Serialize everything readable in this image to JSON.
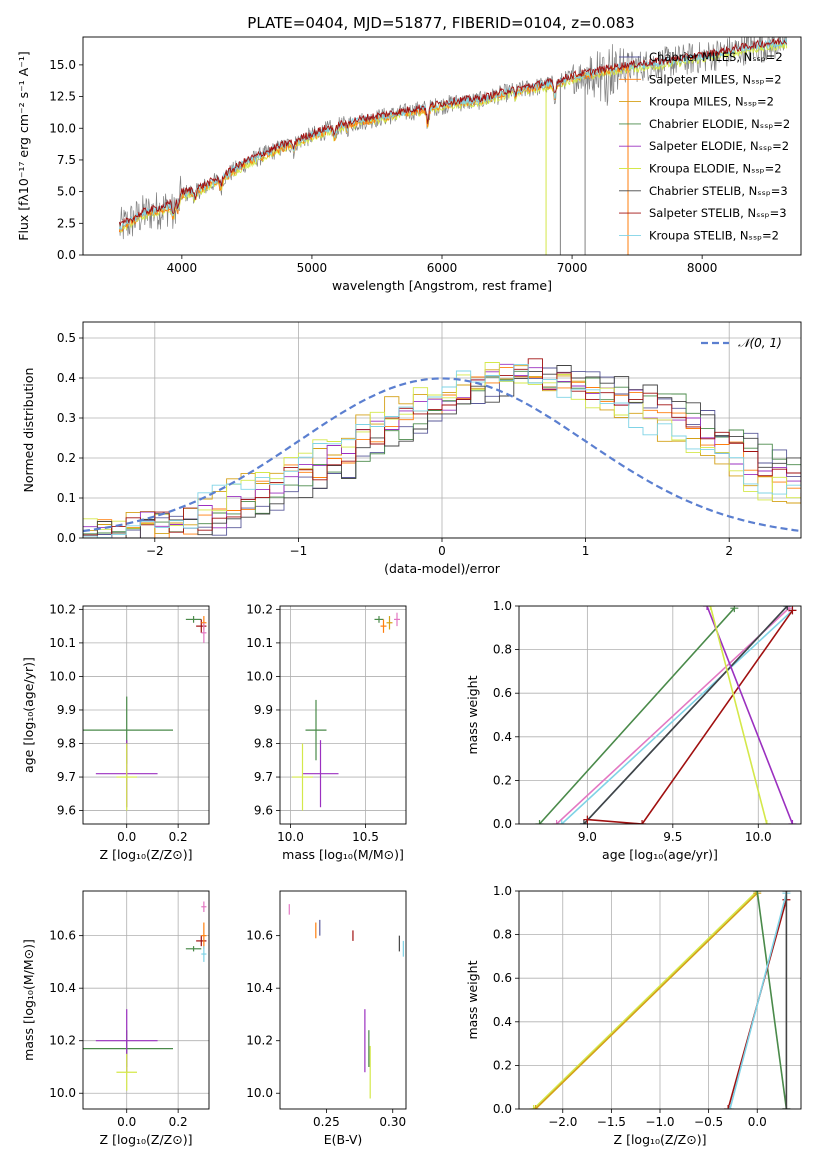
{
  "figure_title": "PLATE=0404, MJD=51877, FIBERID=0104, z=0.083",
  "colors": {
    "chabrier_miles": "#5a5a9a",
    "salpeter_miles": "#ff7f0e",
    "kroupa_miles": "#d4a017",
    "chabrier_elodie": "#4a8a4a",
    "salpeter_elodie": "#9b30c0",
    "kroupa_elodie": "#d4e84a",
    "chabrier_stelib": "#444444",
    "salpeter_stelib": "#a01010",
    "kroupa_stelib": "#7fd3e6",
    "data": "#808080",
    "normal": "#5b7fd0",
    "pink": "#e377c2",
    "blue": "#1f77b4"
  },
  "chart_data": [
    {
      "id": "spectrum",
      "type": "line",
      "title": "PLATE=0404, MJD=51877, FIBERID=0104, z=0.083",
      "xlabel": "wavelength [Angstrom, rest frame]",
      "ylabel": "Flux [fλ10⁻¹⁷ erg cm⁻² s⁻¹ A⁻¹]",
      "xlim": [
        3240,
        8760
      ],
      "ylim": [
        0,
        17.2
      ],
      "xticks": [
        4000,
        5000,
        6000,
        7000,
        8000
      ],
      "yticks": [
        0.0,
        2.5,
        5.0,
        7.5,
        10.0,
        12.5,
        15.0
      ],
      "grid": false,
      "legend_position": "right",
      "legend": [
        {
          "label": "Chabrier MILES, Nₛₛₚ=2",
          "color_key": "chabrier_miles"
        },
        {
          "label": "Salpeter MILES, Nₛₛₚ=2",
          "color_key": "salpeter_miles"
        },
        {
          "label": "Kroupa MILES, Nₛₛₚ=2",
          "color_key": "kroupa_miles"
        },
        {
          "label": "Chabrier ELODIE, Nₛₛₚ=2",
          "color_key": "chabrier_elodie"
        },
        {
          "label": "Salpeter ELODIE, Nₛₛₚ=2",
          "color_key": "salpeter_elodie"
        },
        {
          "label": "Kroupa ELODIE, Nₛₛₚ=2",
          "color_key": "kroupa_elodie"
        },
        {
          "label": "Chabrier STELIB, Nₛₛₚ=3",
          "color_key": "chabrier_stelib"
        },
        {
          "label": "Salpeter STELIB, Nₛₛₚ=3",
          "color_key": "salpeter_stelib"
        },
        {
          "label": "Kroupa STELIB, Nₛₛₚ=2",
          "color_key": "kroupa_stelib"
        }
      ],
      "continuum": {
        "x": [
          3500,
          3700,
          3900,
          4000,
          4100,
          4300,
          4500,
          4700,
          4900,
          5100,
          5300,
          5500,
          5700,
          5900,
          6100,
          6300,
          6500,
          6700,
          6800,
          6900,
          7000,
          7100,
          7200,
          7300,
          7400,
          7600,
          7800,
          8000,
          8200,
          8400,
          8700
        ],
        "y": [
          2.0,
          3.2,
          3.8,
          4.8,
          5.0,
          6.0,
          7.3,
          8.2,
          9.0,
          9.8,
          10.4,
          10.8,
          11.2,
          11.6,
          12.0,
          12.2,
          12.8,
          13.2,
          13.4,
          13.6,
          14.0,
          14.2,
          14.4,
          14.6,
          14.8,
          15.0,
          15.3,
          15.6,
          16.0,
          16.4,
          16.8
        ]
      }
    },
    {
      "id": "residuals",
      "type": "line",
      "xlabel": "(data-model)/error",
      "ylabel": "Normed distribution",
      "xlim": [
        -2.5,
        2.5
      ],
      "ylim": [
        0,
        0.54
      ],
      "xticks": [
        -2,
        -1,
        0,
        1,
        2
      ],
      "xtick_labels": [
        "−2",
        "−1",
        "0",
        "1",
        "2"
      ],
      "yticks": [
        0.0,
        0.1,
        0.2,
        0.3,
        0.4,
        0.5
      ],
      "grid": true,
      "legend_position": "top-right",
      "legend": [
        {
          "label": "𝒩(0, 1)",
          "color_key": "normal",
          "style": "dashed"
        }
      ],
      "bin_width": 0.1,
      "bin_start": -2.5,
      "base_histogram": [
        0.02,
        0.02,
        0.02,
        0.03,
        0.03,
        0.03,
        0.04,
        0.04,
        0.05,
        0.06,
        0.08,
        0.1,
        0.12,
        0.13,
        0.15,
        0.16,
        0.18,
        0.2,
        0.22,
        0.24,
        0.26,
        0.28,
        0.3,
        0.32,
        0.34,
        0.35,
        0.37,
        0.38,
        0.39,
        0.4,
        0.41,
        0.42,
        0.4,
        0.39,
        0.38,
        0.38,
        0.37,
        0.36,
        0.35,
        0.33,
        0.31,
        0.29,
        0.27,
        0.25,
        0.23,
        0.21,
        0.19,
        0.17,
        0.15,
        0.13,
        0.12,
        0.1,
        0.09,
        0.08,
        0.07,
        0.06,
        0.05,
        0.05,
        0.04,
        0.04
      ]
    },
    {
      "id": "age_vs_z",
      "type": "scatter",
      "xlabel": "Z [log₁₀(Z/Z⊙)]",
      "ylabel": "age  [log₁₀(age/yr)]",
      "xlim": [
        -0.17,
        0.32
      ],
      "ylim": [
        9.56,
        10.21
      ],
      "xticks": [
        0.0,
        0.2
      ],
      "xtick_labels": [
        "0.0",
        "0.2"
      ],
      "yticks": [
        9.6,
        9.7,
        9.8,
        9.9,
        10.0,
        10.1,
        10.2
      ],
      "grid": true,
      "points": [
        {
          "x": 0.0,
          "y": 9.84,
          "xerr": 0.18,
          "yerr": 0.1,
          "color_key": "chabrier_elodie"
        },
        {
          "x": 0.0,
          "y": 9.71,
          "xerr": 0.12,
          "yerr": 0.1,
          "color_key": "salpeter_elodie"
        },
        {
          "x": 0.0,
          "y": 9.7,
          "xerr": 0.04,
          "yerr": 0.1,
          "color_key": "kroupa_elodie"
        },
        {
          "x": 0.26,
          "y": 10.17,
          "xerr": 0.03,
          "yerr": 0.01,
          "color_key": "chabrier_elodie"
        },
        {
          "x": 0.29,
          "y": 10.15,
          "xerr": 0.02,
          "yerr": 0.02,
          "color_key": "salpeter_stelib"
        },
        {
          "x": 0.3,
          "y": 10.16,
          "xerr": 0.01,
          "yerr": 0.02,
          "color_key": "salpeter_miles"
        },
        {
          "x": 0.3,
          "y": 10.13,
          "xerr": 0.01,
          "yerr": 0.03,
          "color_key": "pink"
        }
      ]
    },
    {
      "id": "age_vs_mass",
      "type": "scatter",
      "xlabel": "mass [log₁₀(M/M⊙)]",
      "xlim": [
        9.93,
        10.77
      ],
      "ylim": [
        9.56,
        10.21
      ],
      "xticks": [
        10.0,
        10.5
      ],
      "xtick_labels": [
        "10.0",
        "10.5"
      ],
      "yticks": [
        9.6,
        9.7,
        9.8,
        9.9,
        10.0,
        10.1,
        10.2
      ],
      "grid": true,
      "points": [
        {
          "x": 10.17,
          "y": 9.84,
          "xerr": 0.07,
          "yerr": 0.09,
          "color_key": "chabrier_elodie"
        },
        {
          "x": 10.2,
          "y": 9.71,
          "xerr": 0.12,
          "yerr": 0.1,
          "color_key": "salpeter_elodie"
        },
        {
          "x": 10.08,
          "y": 9.7,
          "xerr": 0.07,
          "yerr": 0.1,
          "color_key": "kroupa_elodie"
        },
        {
          "x": 10.59,
          "y": 10.17,
          "xerr": 0.03,
          "yerr": 0.01,
          "color_key": "chabrier_elodie"
        },
        {
          "x": 10.62,
          "y": 10.15,
          "xerr": 0.02,
          "yerr": 0.02,
          "color_key": "salpeter_miles"
        },
        {
          "x": 10.66,
          "y": 10.16,
          "xerr": 0.02,
          "yerr": 0.02,
          "color_key": "kroupa_miles"
        },
        {
          "x": 10.71,
          "y": 10.17,
          "xerr": 0.02,
          "yerr": 0.02,
          "color_key": "pink"
        }
      ]
    },
    {
      "id": "weight_vs_age",
      "type": "line",
      "xlabel": "age  [log₁₀(age/yr)]",
      "ylabel": "mass weight",
      "xlim": [
        8.6,
        10.25
      ],
      "ylim": [
        0,
        1
      ],
      "xticks": [
        9.0,
        9.5,
        10.0
      ],
      "xtick_labels": [
        "9.0",
        "9.5",
        "10.0"
      ],
      "yticks": [
        0.0,
        0.2,
        0.4,
        0.6,
        0.8,
        1.0
      ],
      "grid": true,
      "series": [
        {
          "color_key": "chabrier_elodie",
          "x": [
            8.72,
            9.86
          ],
          "y": [
            0.0,
            0.99
          ]
        },
        {
          "color_key": "pink",
          "x": [
            8.82,
            10.18
          ],
          "y": [
            0.0,
            0.99
          ]
        },
        {
          "color_key": "kroupa_stelib",
          "x": [
            8.85,
            10.2
          ],
          "y": [
            0.0,
            0.98
          ]
        },
        {
          "color_key": "blue",
          "x": [
            8.98,
            10.17
          ],
          "y": [
            0.0,
            1.0
          ]
        },
        {
          "color_key": "chabrier_stelib",
          "x": [
            8.98,
            10.17
          ],
          "y": [
            0.0,
            1.0
          ]
        },
        {
          "color_key": "salpeter_stelib",
          "x": [
            9.0,
            9.32,
            10.2
          ],
          "y": [
            0.02,
            0.0,
            0.98
          ]
        },
        {
          "color_key": "salpeter_elodie",
          "x": [
            9.7,
            10.2
          ],
          "y": [
            1.0,
            0.0
          ]
        },
        {
          "color_key": "kroupa_elodie",
          "x": [
            9.72,
            10.05
          ],
          "y": [
            1.0,
            0.0
          ]
        }
      ]
    },
    {
      "id": "mass_vs_z",
      "type": "scatter",
      "xlabel": "Z [log₁₀(Z/Z⊙)]",
      "ylabel": "mass [log₁₀(M/M⊙)]",
      "xlim": [
        -0.17,
        0.32
      ],
      "ylim": [
        9.94,
        10.77
      ],
      "xticks": [
        0.0,
        0.2
      ],
      "xtick_labels": [
        "0.0",
        "0.2"
      ],
      "yticks": [
        10.0,
        10.2,
        10.4,
        10.6
      ],
      "ytick_labels": [
        "10.0",
        "10.2",
        "10.4",
        "10.6"
      ],
      "grid": true,
      "points": [
        {
          "x": 0.0,
          "y": 10.17,
          "xerr": 0.18,
          "yerr": 0.07,
          "color_key": "chabrier_elodie"
        },
        {
          "x": 0.0,
          "y": 10.2,
          "xerr": 0.12,
          "yerr": 0.12,
          "color_key": "salpeter_elodie"
        },
        {
          "x": 0.0,
          "y": 10.08,
          "xerr": 0.04,
          "yerr": 0.07,
          "color_key": "kroupa_elodie"
        },
        {
          "x": 0.26,
          "y": 10.55,
          "xerr": 0.03,
          "yerr": 0.01,
          "color_key": "chabrier_elodie"
        },
        {
          "x": 0.29,
          "y": 10.58,
          "xerr": 0.02,
          "yerr": 0.02,
          "color_key": "salpeter_stelib"
        },
        {
          "x": 0.3,
          "y": 10.6,
          "xerr": 0.01,
          "yerr": 0.05,
          "color_key": "salpeter_miles"
        },
        {
          "x": 0.3,
          "y": 10.71,
          "xerr": 0.01,
          "yerr": 0.02,
          "color_key": "pink"
        },
        {
          "x": 0.3,
          "y": 10.53,
          "xerr": 0.01,
          "yerr": 0.03,
          "color_key": "kroupa_stelib"
        }
      ]
    },
    {
      "id": "mass_vs_ebv",
      "type": "scatter",
      "xlabel": "E(B-V)",
      "xlim": [
        0.215,
        0.31
      ],
      "ylim": [
        9.94,
        10.77
      ],
      "xticks": [
        0.25,
        0.3
      ],
      "xtick_labels": [
        "0.25",
        "0.30"
      ],
      "yticks": [
        10.0,
        10.2,
        10.4,
        10.6
      ],
      "ytick_labels": [
        "10.0",
        "10.2",
        "10.4",
        "10.6"
      ],
      "grid": false,
      "points": [
        {
          "x": 0.222,
          "y": 10.7,
          "yerr": 0.02,
          "color_key": "pink"
        },
        {
          "x": 0.242,
          "y": 10.62,
          "yerr": 0.03,
          "color_key": "salpeter_miles"
        },
        {
          "x": 0.245,
          "y": 10.63,
          "yerr": 0.03,
          "color_key": "chabrier_miles"
        },
        {
          "x": 0.27,
          "y": 10.6,
          "yerr": 0.02,
          "color_key": "salpeter_stelib"
        },
        {
          "x": 0.279,
          "y": 10.2,
          "yerr": 0.12,
          "color_key": "salpeter_elodie"
        },
        {
          "x": 0.282,
          "y": 10.17,
          "yerr": 0.07,
          "color_key": "chabrier_elodie"
        },
        {
          "x": 0.283,
          "y": 10.08,
          "yerr": 0.1,
          "color_key": "kroupa_elodie"
        },
        {
          "x": 0.305,
          "y": 10.57,
          "yerr": 0.03,
          "color_key": "chabrier_stelib"
        },
        {
          "x": 0.308,
          "y": 10.55,
          "yerr": 0.03,
          "color_key": "kroupa_stelib"
        }
      ]
    },
    {
      "id": "weight_vs_z",
      "type": "line",
      "xlabel": "Z [log₁₀(Z/Z⊙)]",
      "ylabel": "mass weight",
      "xlim": [
        -2.45,
        0.45
      ],
      "ylim": [
        0,
        1
      ],
      "xticks": [
        -2.0,
        -1.5,
        -1.0,
        -0.5,
        0.0
      ],
      "xtick_labels": [
        "−2.0",
        "−1.5",
        "−1.0",
        "−0.5",
        "0.0"
      ],
      "yticks": [
        0.0,
        0.2,
        0.4,
        0.6,
        0.8,
        1.0
      ],
      "grid": true,
      "series": [
        {
          "color_key": "kroupa_elodie",
          "x": [
            -2.3,
            0.0
          ],
          "y": [
            0.0,
            1.0
          ]
        },
        {
          "color_key": "kroupa_miles",
          "x": [
            -2.28,
            0.0
          ],
          "y": [
            0.0,
            0.99
          ]
        },
        {
          "color_key": "chabrier_elodie",
          "x": [
            0.0,
            0.3
          ],
          "y": [
            1.0,
            0.0
          ]
        },
        {
          "color_key": "salpeter_stelib",
          "x": [
            -0.3,
            0.3
          ],
          "y": [
            0.0,
            0.96
          ]
        },
        {
          "color_key": "kroupa_stelib",
          "x": [
            -0.28,
            0.3
          ],
          "y": [
            0.0,
            0.99
          ]
        },
        {
          "color_key": "chabrier_stelib",
          "x": [
            0.3,
            0.3
          ],
          "y": [
            0.0,
            1.0
          ]
        }
      ]
    }
  ]
}
